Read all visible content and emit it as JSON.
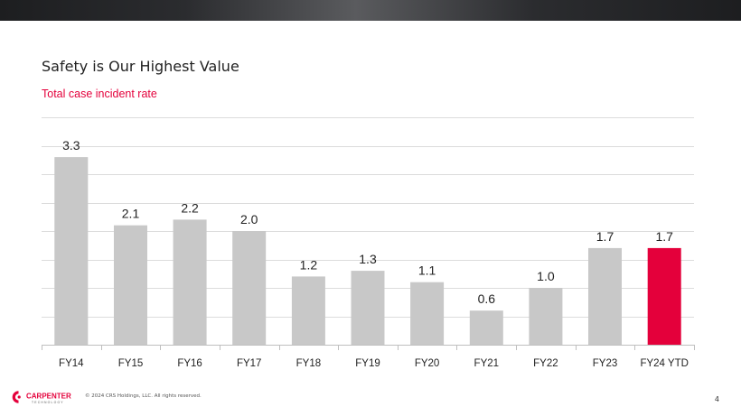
{
  "title": "Safety is Our Highest Value",
  "subtitle": "Total case incident rate",
  "chart_data": {
    "type": "bar",
    "categories": [
      "FY14",
      "FY15",
      "FY16",
      "FY17",
      "FY18",
      "FY19",
      "FY20",
      "FY21",
      "FY22",
      "FY23",
      "FY24 YTD"
    ],
    "values": [
      3.3,
      2.1,
      2.2,
      2.0,
      1.2,
      1.3,
      1.1,
      0.6,
      1.0,
      1.7,
      1.7
    ],
    "data_labels": [
      "3.3",
      "2.1",
      "2.2",
      "2.0",
      "1.2",
      "1.3",
      "1.1",
      "0.6",
      "1.0",
      "1.7",
      "1.7"
    ],
    "ylim": [
      0,
      4.0
    ],
    "grid": true,
    "bar_color": "#c8c8c8",
    "highlight_index": 10,
    "highlight_color": "#e4003b",
    "gridline_color": "#dcdcdc",
    "axis_color": "#bfbfbf"
  },
  "footer": {
    "logo_text": "CARPENTER",
    "logo_subtext": "TECHNOLOGY",
    "copyright": "© 2024 CRS Holdings, LLC. All rights reserved.",
    "page_number": "4",
    "logo_icon": "carpenter-logo-mark-icon"
  }
}
